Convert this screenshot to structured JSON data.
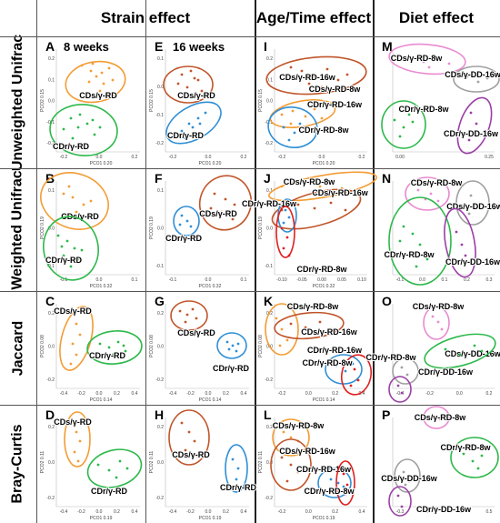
{
  "headers": {
    "strain": "Strain effect",
    "age": "Age/Time effect",
    "diet": "Diet effect"
  },
  "row_labels": [
    "Unweighted Unifrac",
    "Weighted Unifrac",
    "Jaccard",
    "Bray-Curtis"
  ],
  "colors": {
    "orange": "#f39c34",
    "green": "#2db84b",
    "blue": "#2f8fd6",
    "brown": "#c0552a",
    "red": "#e02020",
    "pink": "#e98bd0",
    "gray": "#a0a0a0",
    "purple": "#9b3fa6"
  },
  "panels": [
    {
      "letter": "A",
      "subtitle": "8 weeks",
      "ylabel": "PCO2 0.15",
      "xlabel": "PCO1 0.20",
      "xticks": [
        "-0.2",
        "0.0",
        "0.2"
      ],
      "yticks": [
        "0.2",
        "0.1",
        "0.0",
        "-0.1",
        "-0.2"
      ],
      "groups": [
        {
          "label": "CDs/γ-RD",
          "color": "orange"
        },
        {
          "label": "CDr/γ-RD",
          "color": "green"
        }
      ]
    },
    {
      "letter": "E",
      "subtitle": "16 weeks",
      "ylabel": "PCO2 0.15",
      "xlabel": "PCO1 0.20",
      "xticks": [
        "-0.2",
        "0.0",
        "0.2"
      ],
      "yticks": [
        "0.1",
        "0.0",
        "-0.1",
        "-0.2"
      ],
      "groups": [
        {
          "label": "CDs/γ-RD",
          "color": "brown"
        },
        {
          "label": "CDr/γ-RD",
          "color": "blue"
        }
      ]
    },
    {
      "letter": "I",
      "subtitle": "",
      "ylabel": "PCO2 0.15",
      "xlabel": "PCO1 0.20",
      "xticks": [
        "-0.2",
        "0.0",
        "0.2"
      ],
      "yticks": [
        "0.2",
        "0.1",
        "0.0",
        "-0.1",
        "-0.2"
      ],
      "groups": [
        {
          "label": "CDs/γ-RD-16w",
          "color": "brown"
        },
        {
          "label": "CDs/γ-RD-8w",
          "color": "orange"
        },
        {
          "label": "CDr/γ-RD-16w",
          "color": "blue"
        },
        {
          "label": "CDr/γ-RD-8w",
          "color": "red"
        }
      ]
    },
    {
      "letter": "M",
      "subtitle": "",
      "ylabel": "",
      "xlabel": "",
      "xticks": [
        "0.00",
        "0.25"
      ],
      "yticks": [],
      "groups": [
        {
          "label": "CDs/γ-RD-8w",
          "color": "pink"
        },
        {
          "label": "CDs/γ-DD-16w",
          "color": "gray"
        },
        {
          "label": "CDr/γ-RD-8w",
          "color": "green"
        },
        {
          "label": "CDr/γ-DD-16w",
          "color": "purple"
        }
      ]
    },
    {
      "letter": "B",
      "subtitle": "",
      "ylabel": "PCO2 0.19",
      "xlabel": "PCO1 0.32",
      "xticks": [
        "-0.1",
        "0.0",
        "0.1"
      ],
      "yticks": [
        "0.1",
        "0.0",
        "-0.1"
      ],
      "groups": [
        {
          "label": "CDs/γ-RD",
          "color": "orange"
        },
        {
          "label": "CDr/γ-RD",
          "color": "green"
        }
      ]
    },
    {
      "letter": "F",
      "subtitle": "",
      "ylabel": "PCO2 0.19",
      "xlabel": "PCO1 0.32",
      "xticks": [
        "-0.1",
        "0.0",
        "0.1"
      ],
      "yticks": [
        "0.1",
        "0.0",
        "-0.1"
      ],
      "groups": [
        {
          "label": "CDs/γ-RD",
          "color": "brown"
        },
        {
          "label": "CDr/γ-RD",
          "color": "blue"
        }
      ]
    },
    {
      "letter": "J",
      "subtitle": "",
      "ylabel": "PCO2 0.19",
      "xlabel": "PCO1 0.32",
      "xticks": [
        "-0.10",
        "-0.05",
        "0.00",
        "0.05",
        "0.10"
      ],
      "yticks": [
        "0.1",
        "0.0",
        "-0.1"
      ],
      "groups": [
        {
          "label": "CDs/γ-RD-8w",
          "color": "orange"
        },
        {
          "label": "CDs/γ-RD-16w",
          "color": "brown"
        },
        {
          "label": "CDr/γ-RD-16w",
          "color": "blue"
        },
        {
          "label": "CDr/γ-RD-8w",
          "color": "red"
        }
      ]
    },
    {
      "letter": "N",
      "subtitle": "",
      "ylabel": "",
      "xlabel": "",
      "xticks": [
        "-0.1",
        "0.0",
        "0.1",
        "0.2",
        "0.3"
      ],
      "yticks": [],
      "groups": [
        {
          "label": "CDs/γ-RD-8w",
          "color": "pink"
        },
        {
          "label": "CDs/γ-DD-16w",
          "color": "gray"
        },
        {
          "label": "CDr/γ-RD-8w",
          "color": "green"
        },
        {
          "label": "CDr/γ-DD-16w",
          "color": "purple"
        }
      ]
    },
    {
      "letter": "C",
      "subtitle": "",
      "ylabel": "PCO2 0.08",
      "xlabel": "PCO1 0.14",
      "xticks": [
        "-0.4",
        "-0.2",
        "0.0",
        "0.2",
        "0.4"
      ],
      "yticks": [
        "0.2",
        "0.0",
        "-0.2"
      ],
      "groups": [
        {
          "label": "CDs/γ-RD",
          "color": "orange"
        },
        {
          "label": "CDr/γ-RD",
          "color": "green"
        }
      ]
    },
    {
      "letter": "G",
      "subtitle": "",
      "ylabel": "PCO2 0.08",
      "xlabel": "PCO1 0.14",
      "xticks": [
        "-0.4",
        "-0.2",
        "0.0",
        "0.2",
        "0.4"
      ],
      "yticks": [
        "0.2",
        "0.0",
        "-0.2"
      ],
      "groups": [
        {
          "label": "CDs/γ-RD",
          "color": "brown"
        },
        {
          "label": "CDr/γ-RD",
          "color": "blue"
        }
      ]
    },
    {
      "letter": "K",
      "subtitle": "",
      "ylabel": "PCO2 0.08",
      "xlabel": "PCO1 0.14",
      "xticks": [
        "-0.2",
        "0.0",
        "0.2",
        "0.4"
      ],
      "yticks": [
        "0.2",
        "0.0",
        "-0.2"
      ],
      "groups": [
        {
          "label": "CDs/γ-RD-8w",
          "color": "orange"
        },
        {
          "label": "CDs/γ-RD-16w",
          "color": "brown"
        },
        {
          "label": "CDr/γ-RD-16w",
          "color": "blue"
        },
        {
          "label": "CDr/γ-RD-8w",
          "color": "red"
        }
      ]
    },
    {
      "letter": "O",
      "subtitle": "",
      "ylabel": "",
      "xlabel": "",
      "xticks": [
        "-0.4",
        "-0.2",
        "0.0",
        "0.2"
      ],
      "yticks": [],
      "groups": [
        {
          "label": "CDs/γ-RD-8w",
          "color": "pink"
        },
        {
          "label": "CDs/γ-DD-16w",
          "color": "gray"
        },
        {
          "label": "CDr/γ-RD-8w",
          "color": "green"
        },
        {
          "label": "CDr/γ-DD-16w",
          "color": "purple"
        }
      ]
    },
    {
      "letter": "D",
      "subtitle": "",
      "ylabel": "PCO2 0.11",
      "xlabel": "PCO1 0.19",
      "xticks": [
        "-0.4",
        "-0.2",
        "0.0",
        "0.2",
        "0.4"
      ],
      "yticks": [
        "0.2",
        "0.0",
        "-0.2"
      ],
      "groups": [
        {
          "label": "CDs/γ-RD",
          "color": "orange"
        },
        {
          "label": "CDr/γ-RD",
          "color": "green"
        }
      ]
    },
    {
      "letter": "H",
      "subtitle": "",
      "ylabel": "PCO2 0.11",
      "xlabel": "PCO1 0.19",
      "xticks": [
        "-0.4",
        "-0.2",
        "0.0",
        "0.2",
        "0.4"
      ],
      "yticks": [
        "0.2",
        "0.0",
        "-0.2"
      ],
      "groups": [
        {
          "label": "CDs/γ-RD",
          "color": "brown"
        },
        {
          "label": "CDr/γ-RD",
          "color": "blue"
        }
      ]
    },
    {
      "letter": "L",
      "subtitle": "",
      "ylabel": "PCO2 0.11",
      "xlabel": "PCO1 0.19",
      "xticks": [
        "-0.2",
        "0.0",
        "0.2",
        "0.4"
      ],
      "yticks": [
        "0.2",
        "0.0",
        "-0.2"
      ],
      "groups": [
        {
          "label": "CDs/γ-RD-8w",
          "color": "orange"
        },
        {
          "label": "CDs/γ-RD-16w",
          "color": "brown"
        },
        {
          "label": "CDr/γ-RD-16w",
          "color": "blue"
        },
        {
          "label": "CDr/γ-RD-8w",
          "color": "red"
        }
      ]
    },
    {
      "letter": "P",
      "subtitle": "",
      "ylabel": "",
      "xlabel": "",
      "xticks": [
        "-0.3",
        "0.0",
        "0.3",
        "0.5"
      ],
      "yticks": [],
      "groups": [
        {
          "label": "CDs/γ-RD-8w",
          "color": "pink"
        },
        {
          "label": "CDr/γ-RD-8w",
          "color": "green"
        },
        {
          "label": "CDs/γ-DD-16w",
          "color": "gray"
        },
        {
          "label": "CDr/γ-DD-16w",
          "color": "purple"
        }
      ]
    }
  ]
}
